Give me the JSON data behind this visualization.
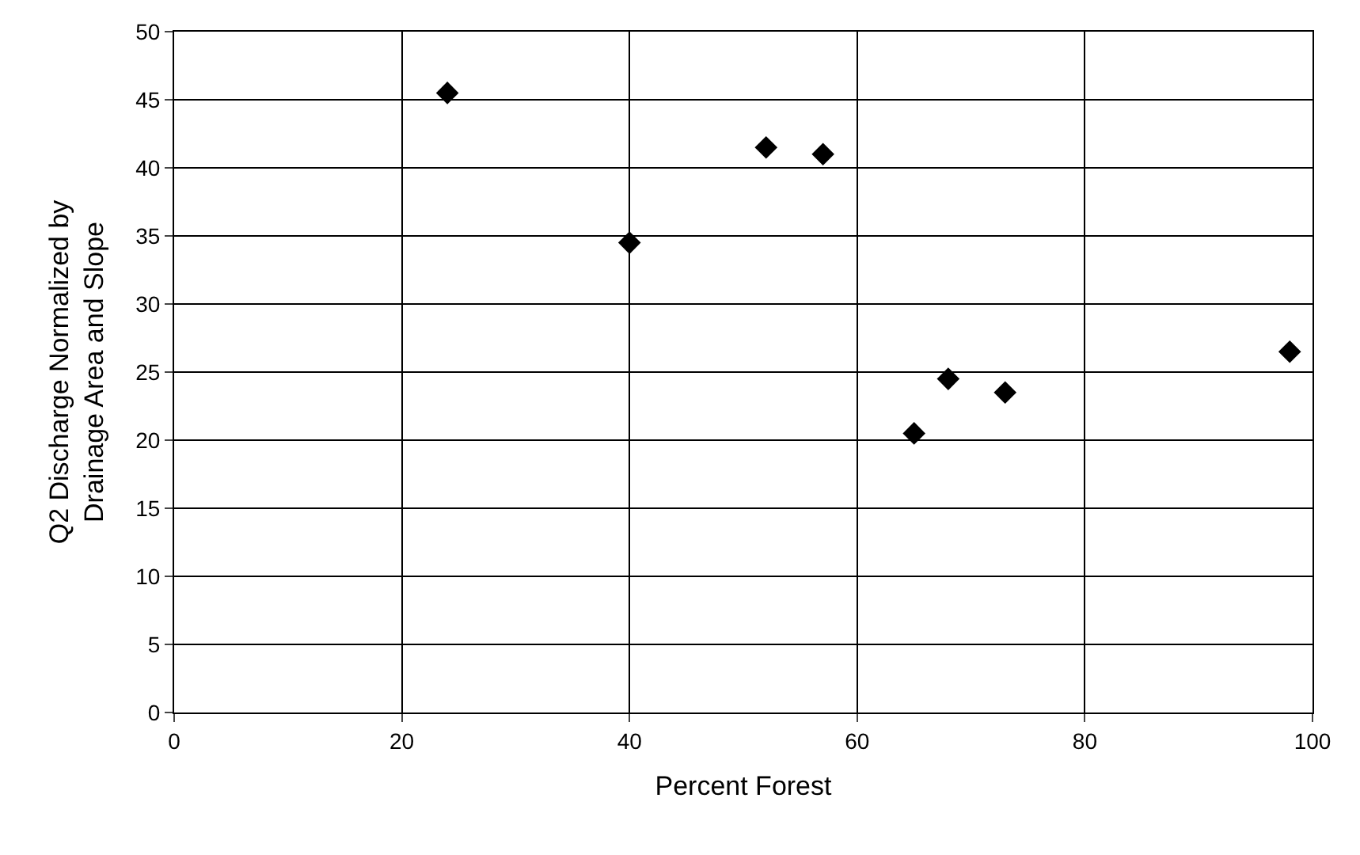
{
  "chart_data": {
    "type": "scatter",
    "xlabel": "Percent Forest",
    "ylabel": "Q2 Discharge Normalized by\nDrainage Area and Slope",
    "x": [
      24,
      40,
      52,
      57,
      65,
      68,
      73,
      98
    ],
    "series": [
      {
        "color": "#000000",
        "values": [
          45.5,
          34.5,
          41.5,
          41,
          20.5,
          24.5,
          23.5,
          26.5
        ]
      }
    ],
    "xlim": [
      0,
      100
    ],
    "xticks": [
      0,
      20,
      40,
      60,
      80,
      100
    ],
    "ylim": [
      0,
      50
    ],
    "yticks": [
      0,
      5,
      10,
      15,
      20,
      25,
      30,
      35,
      40,
      45,
      50
    ],
    "grid": true,
    "marker": "diamond",
    "legend": false
  }
}
